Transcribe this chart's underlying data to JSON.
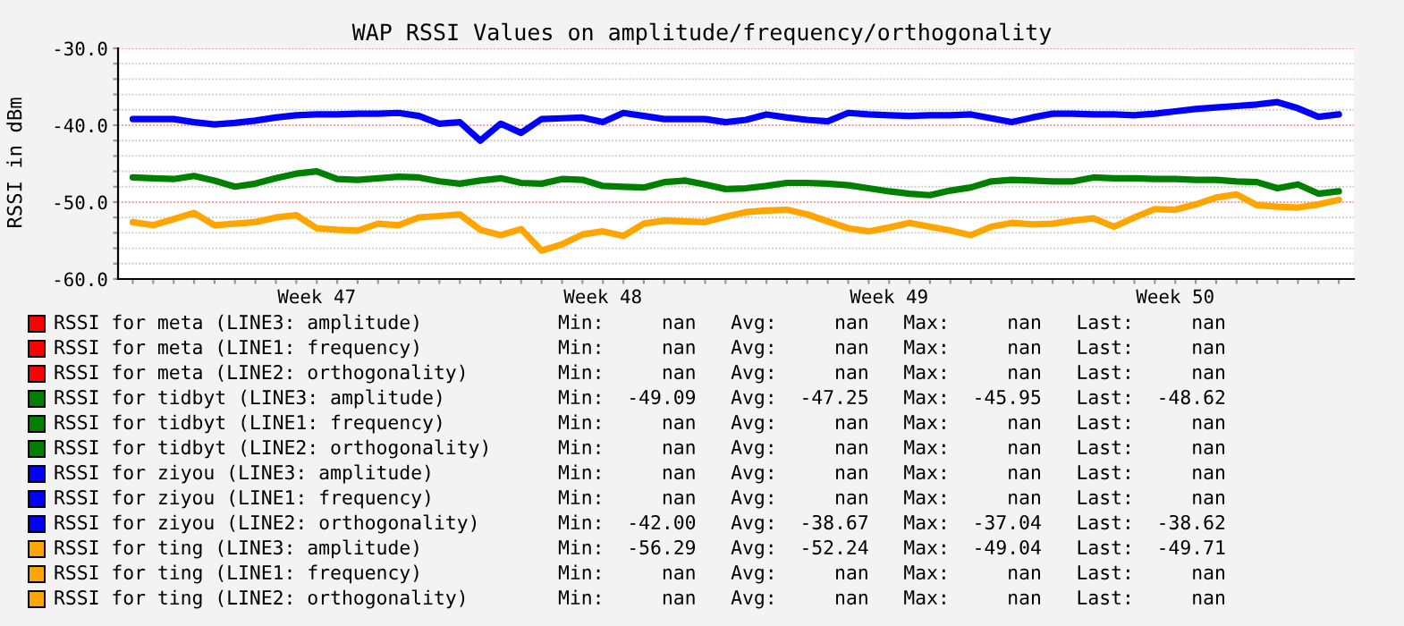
{
  "chart_data": {
    "type": "line",
    "title": "WAP RSSI Values on amplitude/frequency/orthogonality",
    "ylabel": "RSSI in dBm",
    "categories": [
      null,
      null,
      null,
      null,
      null,
      null,
      null,
      null,
      null,
      "Week 47",
      null,
      null,
      null,
      null,
      null,
      null,
      null,
      null,
      null,
      null,
      null,
      null,
      null,
      "Week 48",
      null,
      null,
      null,
      null,
      null,
      null,
      null,
      null,
      null,
      null,
      null,
      null,
      null,
      "Week 49",
      null,
      null,
      null,
      null,
      null,
      null,
      null,
      null,
      null,
      null,
      null,
      null,
      null,
      "Week 50",
      null,
      null,
      null,
      null,
      null,
      null,
      null,
      null
    ],
    "ylim": [
      -60,
      -30
    ],
    "yticks": [
      {
        "value": -60,
        "label": "-60.0"
      },
      {
        "value": -50,
        "label": "-50.0"
      },
      {
        "value": -40,
        "label": "-40.0"
      },
      {
        "value": -30,
        "label": "-30.0"
      },
      {
        "value": -58,
        "label": null
      },
      {
        "value": -56,
        "label": null
      },
      {
        "value": -54,
        "label": null
      },
      {
        "value": -52,
        "label": null
      },
      {
        "value": -48,
        "label": null
      },
      {
        "value": -46,
        "label": null
      },
      {
        "value": -44,
        "label": null
      },
      {
        "value": -42,
        "label": null
      },
      {
        "value": -38,
        "label": null
      },
      {
        "value": -36,
        "label": null
      },
      {
        "value": -34,
        "label": null
      },
      {
        "value": -32,
        "label": null
      }
    ],
    "grid": "y",
    "legend": "bottom",
    "series": [
      {
        "name": "RSSI for meta (LINE3: amplitude)",
        "color": "#ff0000",
        "values": [
          null,
          null,
          null,
          null,
          null,
          null,
          null,
          null,
          null,
          null,
          null,
          null,
          null,
          null,
          null,
          null,
          null,
          null,
          null,
          null,
          null,
          null,
          null,
          null,
          null,
          null,
          null,
          null,
          null,
          null,
          null,
          null,
          null,
          null,
          null,
          null,
          null,
          null,
          null,
          null,
          null,
          null,
          null,
          null,
          null,
          null,
          null,
          null,
          null,
          null,
          null,
          null,
          null,
          null,
          null,
          null,
          null,
          null,
          null,
          null
        ]
      },
      {
        "name": "RSSI for meta (LINE1: frequency)",
        "color": "#ff0000",
        "values": [
          null,
          null,
          null,
          null,
          null,
          null,
          null,
          null,
          null,
          null,
          null,
          null,
          null,
          null,
          null,
          null,
          null,
          null,
          null,
          null,
          null,
          null,
          null,
          null,
          null,
          null,
          null,
          null,
          null,
          null,
          null,
          null,
          null,
          null,
          null,
          null,
          null,
          null,
          null,
          null,
          null,
          null,
          null,
          null,
          null,
          null,
          null,
          null,
          null,
          null,
          null,
          null,
          null,
          null,
          null,
          null,
          null,
          null,
          null,
          null
        ]
      },
      {
        "name": "RSSI for meta (LINE2: orthogonality)",
        "color": "#ff0000",
        "values": [
          null,
          null,
          null,
          null,
          null,
          null,
          null,
          null,
          null,
          null,
          null,
          null,
          null,
          null,
          null,
          null,
          null,
          null,
          null,
          null,
          null,
          null,
          null,
          null,
          null,
          null,
          null,
          null,
          null,
          null,
          null,
          null,
          null,
          null,
          null,
          null,
          null,
          null,
          null,
          null,
          null,
          null,
          null,
          null,
          null,
          null,
          null,
          null,
          null,
          null,
          null,
          null,
          null,
          null,
          null,
          null,
          null,
          null,
          null,
          null
        ]
      },
      {
        "name": "RSSI for tidbyt (LINE3: amplitude)",
        "color": "#008000",
        "values": [
          -46.8,
          -46.9,
          -47.0,
          -46.6,
          -47.2,
          -48.0,
          -47.6,
          -46.9,
          -46.3,
          -46.0,
          -47.0,
          -47.1,
          -46.9,
          -46.7,
          -46.8,
          -47.3,
          -47.6,
          -47.2,
          -46.9,
          -47.5,
          -47.6,
          -47.0,
          -47.1,
          -47.9,
          -48.0,
          -48.1,
          -47.4,
          -47.2,
          -47.7,
          -48.3,
          -48.2,
          -47.9,
          -47.5,
          -47.5,
          -47.6,
          -47.8,
          -48.2,
          -48.6,
          -48.9,
          -49.1,
          -48.5,
          -48.1,
          -47.3,
          -47.1,
          -47.2,
          -47.3,
          -47.3,
          -46.8,
          -46.9,
          -46.9,
          -47.0,
          -47.0,
          -47.1,
          -47.1,
          -47.3,
          -47.4,
          -48.2,
          -47.7,
          -48.9,
          -48.6
        ]
      },
      {
        "name": "RSSI for tidbyt (LINE1: frequency)",
        "color": "#008000",
        "values": [
          null,
          null,
          null,
          null,
          null,
          null,
          null,
          null,
          null,
          null,
          null,
          null,
          null,
          null,
          null,
          null,
          null,
          null,
          null,
          null,
          null,
          null,
          null,
          null,
          null,
          null,
          null,
          null,
          null,
          null,
          null,
          null,
          null,
          null,
          null,
          null,
          null,
          null,
          null,
          null,
          null,
          null,
          null,
          null,
          null,
          null,
          null,
          null,
          null,
          null,
          null,
          null,
          null,
          null,
          null,
          null,
          null,
          null,
          null,
          null
        ]
      },
      {
        "name": "RSSI for tidbyt (LINE2: orthogonality)",
        "color": "#008000",
        "values": [
          null,
          null,
          null,
          null,
          null,
          null,
          null,
          null,
          null,
          null,
          null,
          null,
          null,
          null,
          null,
          null,
          null,
          null,
          null,
          null,
          null,
          null,
          null,
          null,
          null,
          null,
          null,
          null,
          null,
          null,
          null,
          null,
          null,
          null,
          null,
          null,
          null,
          null,
          null,
          null,
          null,
          null,
          null,
          null,
          null,
          null,
          null,
          null,
          null,
          null,
          null,
          null,
          null,
          null,
          null,
          null,
          null,
          null,
          null,
          null
        ]
      },
      {
        "name": "RSSI for ziyou (LINE3: amplitude)",
        "color": "#0000ff",
        "values": [
          null,
          null,
          null,
          null,
          null,
          null,
          null,
          null,
          null,
          null,
          null,
          null,
          null,
          null,
          null,
          null,
          null,
          null,
          null,
          null,
          null,
          null,
          null,
          null,
          null,
          null,
          null,
          null,
          null,
          null,
          null,
          null,
          null,
          null,
          null,
          null,
          null,
          null,
          null,
          null,
          null,
          null,
          null,
          null,
          null,
          null,
          null,
          null,
          null,
          null,
          null,
          null,
          null,
          null,
          null,
          null,
          null,
          null,
          null,
          null
        ]
      },
      {
        "name": "RSSI for ziyou (LINE1: frequency)",
        "color": "#0000ff",
        "values": [
          null,
          null,
          null,
          null,
          null,
          null,
          null,
          null,
          null,
          null,
          null,
          null,
          null,
          null,
          null,
          null,
          null,
          null,
          null,
          null,
          null,
          null,
          null,
          null,
          null,
          null,
          null,
          null,
          null,
          null,
          null,
          null,
          null,
          null,
          null,
          null,
          null,
          null,
          null,
          null,
          null,
          null,
          null,
          null,
          null,
          null,
          null,
          null,
          null,
          null,
          null,
          null,
          null,
          null,
          null,
          null,
          null,
          null,
          null,
          null
        ]
      },
      {
        "name": "RSSI for ziyou (LINE2: orthogonality)",
        "color": "#0000ff",
        "values": [
          -39.2,
          -39.2,
          -39.2,
          -39.6,
          -39.9,
          -39.7,
          -39.4,
          -39.0,
          -38.7,
          -38.6,
          -38.6,
          -38.5,
          -38.5,
          -38.4,
          -38.8,
          -39.8,
          -39.6,
          -42.0,
          -39.8,
          -41.0,
          -39.2,
          -39.1,
          -39.0,
          -39.6,
          -38.4,
          -38.8,
          -39.2,
          -39.2,
          -39.2,
          -39.6,
          -39.3,
          -38.6,
          -39.0,
          -39.3,
          -39.5,
          -38.4,
          -38.6,
          -38.7,
          -38.8,
          -38.7,
          -38.7,
          -38.6,
          -39.1,
          -39.6,
          -39.0,
          -38.5,
          -38.5,
          -38.6,
          -38.6,
          -38.7,
          -38.5,
          -38.2,
          -37.9,
          -37.7,
          -37.5,
          -37.3,
          -37.0,
          -37.8,
          -38.9,
          -38.6
        ]
      },
      {
        "name": "RSSI for ting (LINE3: amplitude)",
        "color": "#ffa500",
        "values": [
          -52.6,
          -53.0,
          -52.2,
          -51.4,
          -53.0,
          -52.8,
          -52.6,
          -52.0,
          -51.7,
          -53.4,
          -53.6,
          -53.7,
          -52.8,
          -53.0,
          -52.0,
          -51.8,
          -51.6,
          -53.6,
          -54.3,
          -53.5,
          -56.3,
          -55.5,
          -54.2,
          -53.8,
          -54.4,
          -52.8,
          -52.4,
          -52.5,
          -52.6,
          -51.9,
          -51.3,
          -51.1,
          -51.0,
          -51.6,
          -52.5,
          -53.4,
          -53.8,
          -53.3,
          -52.7,
          -53.2,
          -53.7,
          -54.3,
          -53.2,
          -52.7,
          -52.9,
          -52.8,
          -52.4,
          -52.1,
          -53.2,
          -52.0,
          -50.9,
          -51.0,
          -50.3,
          -49.4,
          -49.0,
          -50.4,
          -50.6,
          -50.7,
          -50.3,
          -49.7
        ]
      },
      {
        "name": "RSSI for ting (LINE1: frequency)",
        "color": "#ffa500",
        "values": [
          null,
          null,
          null,
          null,
          null,
          null,
          null,
          null,
          null,
          null,
          null,
          null,
          null,
          null,
          null,
          null,
          null,
          null,
          null,
          null,
          null,
          null,
          null,
          null,
          null,
          null,
          null,
          null,
          null,
          null,
          null,
          null,
          null,
          null,
          null,
          null,
          null,
          null,
          null,
          null,
          null,
          null,
          null,
          null,
          null,
          null,
          null,
          null,
          null,
          null,
          null,
          null,
          null,
          null,
          null,
          null,
          null,
          null,
          null,
          null
        ]
      },
      {
        "name": "RSSI for ting (LINE2: orthogonality)",
        "color": "#ffa500",
        "values": [
          null,
          null,
          null,
          null,
          null,
          null,
          null,
          null,
          null,
          null,
          null,
          null,
          null,
          null,
          null,
          null,
          null,
          null,
          null,
          null,
          null,
          null,
          null,
          null,
          null,
          null,
          null,
          null,
          null,
          null,
          null,
          null,
          null,
          null,
          null,
          null,
          null,
          null,
          null,
          null,
          null,
          null,
          null,
          null,
          null,
          null,
          null,
          null,
          null,
          null,
          null,
          null,
          null,
          null,
          null,
          null,
          null,
          null,
          null,
          null
        ]
      }
    ],
    "annotations": [
      "Min:     nan   Avg:     nan   Max:     nan   Last:     nan",
      "Min:     nan   Avg:     nan   Max:     nan   Last:     nan",
      "Min:     nan   Avg:     nan   Max:     nan   Last:     nan",
      "Min:  -49.09   Avg:  -47.25   Max:  -45.95   Last:  -48.62",
      "Min:     nan   Avg:     nan   Max:     nan   Last:     nan",
      "Min:     nan   Avg:     nan   Max:     nan   Last:     nan",
      "Min:     nan   Avg:     nan   Max:     nan   Last:     nan",
      "Min:     nan   Avg:     nan   Max:     nan   Last:     nan",
      "Min:  -42.00   Avg:  -38.67   Max:  -37.04   Last:  -38.62",
      "Min:  -56.29   Avg:  -52.24   Max:  -49.04   Last:  -49.71",
      "Min:     nan   Avg:     nan   Max:     nan   Last:     nan",
      "Min:     nan   Avg:     nan   Max:     nan   Last:     nan"
    ]
  }
}
